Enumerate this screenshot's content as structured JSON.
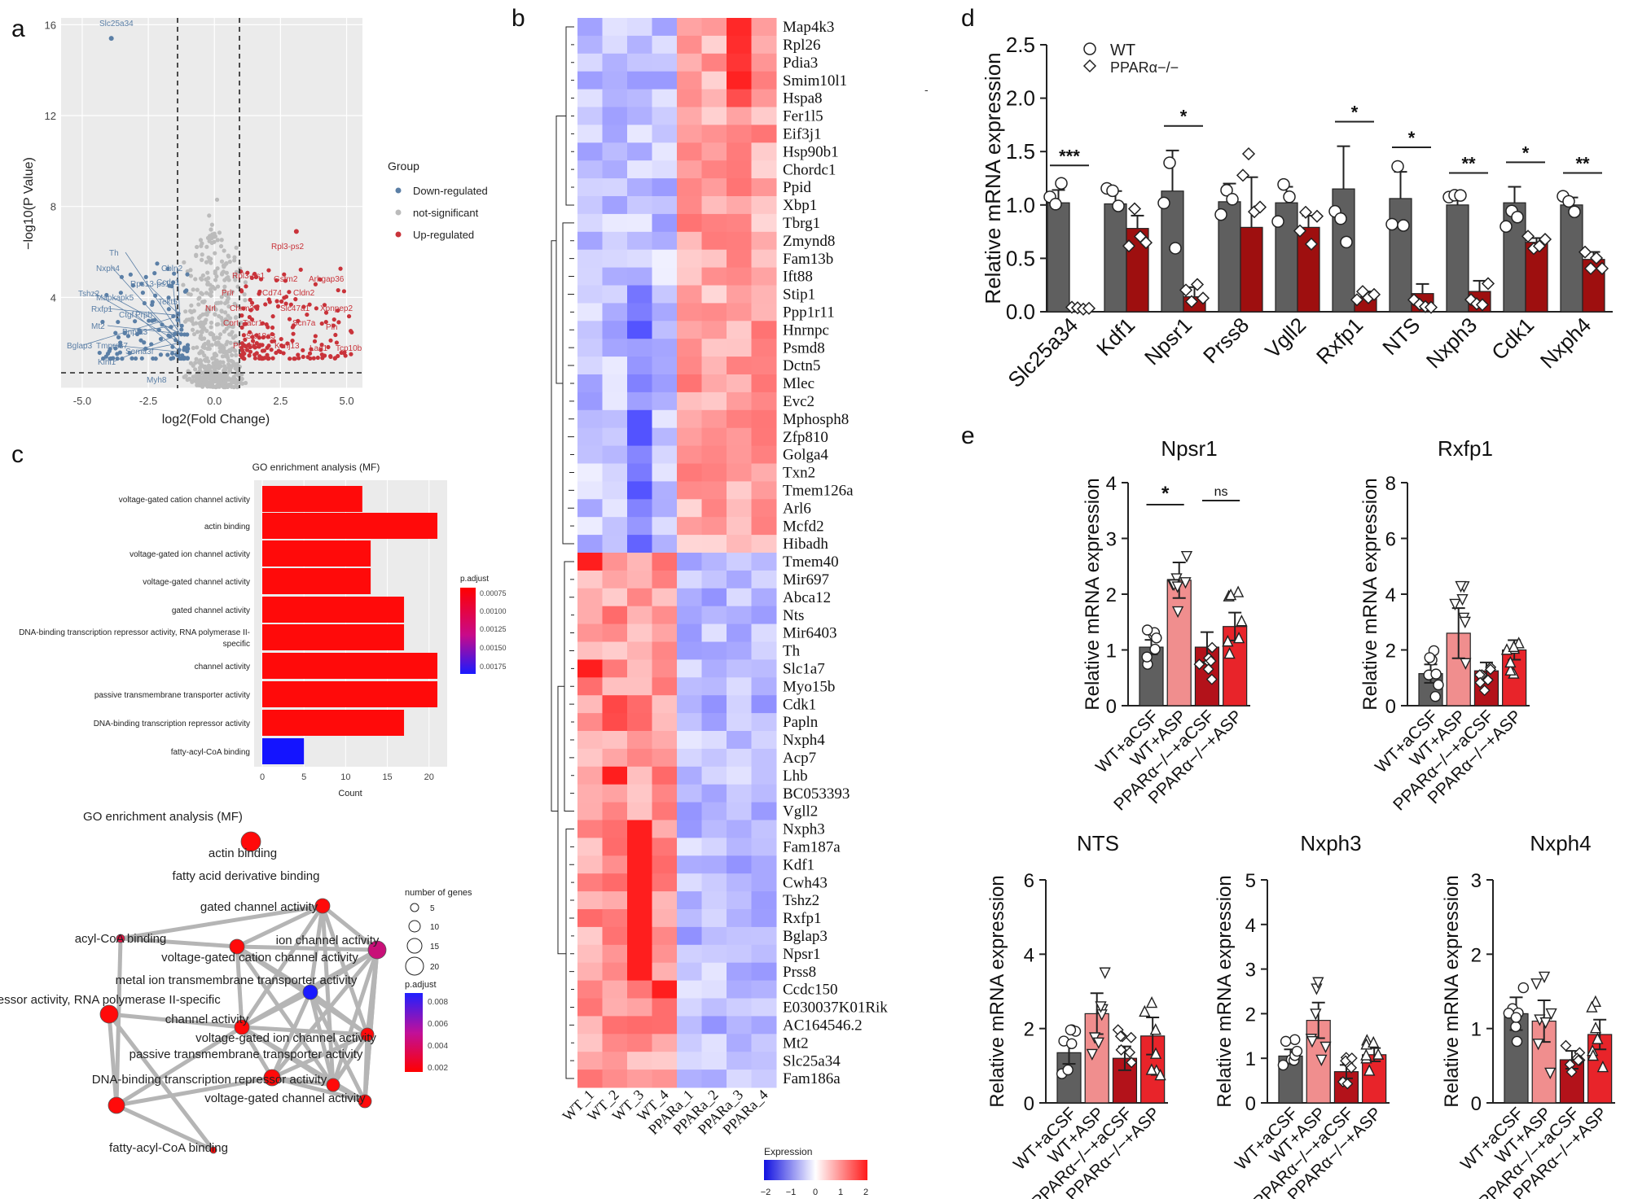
{
  "panels": {
    "a": "a",
    "b": "b",
    "c": "c",
    "d": "d",
    "e": "e"
  },
  "volcano": {
    "ylabel": "−log10(P Value)",
    "xlabel": "log2(Fold Change)",
    "xticks": [
      "-5.0",
      "-2.5",
      "0.0",
      "2.5",
      "5.0"
    ],
    "yticks": [
      "4",
      "8",
      "12",
      "16"
    ],
    "legend_title": "Group",
    "legend": [
      "Down-regulated",
      "not-significant",
      "Up-regulated"
    ],
    "colors": {
      "down": "#5b7fa6",
      "ns": "#bbbbbb",
      "up": "#c9333a"
    },
    "down_labels": [
      "Slc25a34",
      "Nxph4",
      "Th",
      "Cbln2",
      "Rps13-ps1",
      "Ccdc1",
      "Tshz2",
      "Mapkapk5",
      "Tekt5",
      "Rxfp1",
      "Ctgf",
      "Prph",
      "Mt2",
      "Pnpla3",
      "Bglap3",
      "Tmprss7",
      "Sema3f",
      "Klhl1",
      "Myh8"
    ],
    "up_labels": [
      "Rpl3-ps2",
      "Rpl3-ps1",
      "Gstm2",
      "Arhgap36",
      "Prlr",
      "Cd74",
      "Cldn2",
      "Nrl",
      "Chrm3",
      "Slc47a1",
      "Xpnpep2",
      "Cort",
      "Tacr1",
      "Scn7a",
      "Pln",
      "Slc18a3",
      "Ptrgfd1",
      "Kcnj13",
      "Lao1",
      "Tcp10b"
    ]
  },
  "heatmap": {
    "genes": [
      "Map4k3",
      "Rpl26",
      "Pdia3",
      "Smim10l1",
      "Hspa8",
      "Fer1l5",
      "Eif3j1",
      "Hsp90b1",
      "Chordc1",
      "Ppid",
      "Xbp1",
      "Tbrg1",
      "Zmynd8",
      "Fam13b",
      "Ift88",
      "Stip1",
      "Ppp1r11",
      "Hnrnpc",
      "Psmd8",
      "Dctn5",
      "Mlec",
      "Evc2",
      "Mphosph8",
      "Zfp810",
      "Golga4",
      "Txn2",
      "Tmem126a",
      "Arl6",
      "Mcfd2",
      "Hibadh",
      "Tmem40",
      "Mir697",
      "Abca12",
      "Nts",
      "Mir6403",
      "Th",
      "Slc1a7",
      "Myo15b",
      "Cdk1",
      "Papln",
      "Nxph4",
      "Acp7",
      "Lhb",
      "BC053393",
      "Vgll2",
      "Nxph3",
      "Fam187a",
      "Kdf1",
      "Cwh43",
      "Tshz2",
      "Rxfp1",
      "Bglap3",
      "Npsr1",
      "Prss8",
      "Ccdc150",
      "E030037K01Rik",
      "AC164546.2",
      "Mt2",
      "Slc25a34",
      "Fam186a"
    ],
    "samples": [
      "WT_1",
      "WT_2",
      "WT_3",
      "WT_4",
      "PPARa_1",
      "PPARa_2",
      "PPARa_3",
      "PPARa_4"
    ],
    "legend_title": "Expression",
    "legend_ticks": [
      "−2",
      "−1",
      "0",
      "1",
      "2"
    ]
  },
  "go_bar": {
    "title": "GO enrichment analysis (MF)",
    "terms": [
      "voltage-gated cation channel activity",
      "actin binding",
      "voltage-gated ion channel activity",
      "voltage-gated channel activity",
      "gated channel activity",
      "DNA-binding transcription repressor activity, RNA polymerase II-",
      "specific",
      "channel activity",
      "passive transmembrane transporter activity",
      "DNA-binding transcription repressor activity",
      "fatty-acyl-CoA binding"
    ],
    "counts": [
      12,
      21,
      13,
      13,
      17,
      17,
      21,
      21,
      17,
      5
    ],
    "xlabel": "Count",
    "xticks": [
      "0",
      "5",
      "10",
      "15",
      "20"
    ],
    "legend_title": "p.adjust",
    "legend_ticks": [
      "0.00075",
      "0.00100",
      "0.00125",
      "0.00150",
      "0.00175"
    ]
  },
  "go_net": {
    "title": "GO enrichment analysis (MF)",
    "labels": [
      "actin binding",
      "fatty acid derivative binding",
      "gated channel activity",
      "acyl-CoA binding",
      "ion channel activity",
      "voltage-gated cation channel activity",
      "metal ion transmembrane transporter activity",
      "on repressor activity, RNA polymerase II-specific",
      "channel activity",
      "voltage-gated ion channel activity",
      "passive transmembrane transporter activity",
      "DNA-binding transcription repressor activity",
      "voltage-gated channel activity",
      "fatty-acyl-CoA binding"
    ],
    "size_title": "number of genes",
    "size_ticks": [
      "5",
      "10",
      "15",
      "20"
    ],
    "padj_title": "p.adjust",
    "padj_ticks": [
      "0.008",
      "0.006",
      "0.004",
      "0.002"
    ]
  },
  "chart_data": [
    {
      "type": "bar",
      "panel": "d",
      "ylabel": "Relative mRNA expression",
      "ylim": [
        0,
        2.5
      ],
      "yticks": [
        "0.0",
        "0.5",
        "1.0",
        "1.5",
        "2.0",
        "2.5"
      ],
      "legend": [
        "WT",
        "PPARα−/−"
      ],
      "categories": [
        "Slc25a34",
        "Kdf1",
        "Npsr1",
        "Prss8",
        "Vgll2",
        "Rxfp1",
        "NTS",
        "Nxph3",
        "Cdk1",
        "Nxph4"
      ],
      "series": [
        {
          "name": "WT",
          "color": "#5f5f5f",
          "values": [
            1.02,
            1.01,
            1.13,
            1.03,
            1.02,
            1.15,
            1.06,
            1.0,
            1.02,
            1.0
          ],
          "err": [
            0.12,
            0.12,
            0.38,
            0.17,
            0.15,
            0.4,
            0.25,
            0.07,
            0.15,
            0.07
          ]
        },
        {
          "name": "PPARα−/−",
          "color": "#9e0f0f",
          "values": [
            0.03,
            0.78,
            0.14,
            0.79,
            0.79,
            0.14,
            0.17,
            0.19,
            0.65,
            0.49
          ],
          "err": [
            0.01,
            0.12,
            0.09,
            0.47,
            0.11,
            0.05,
            0.09,
            0.1,
            0.04,
            0.07
          ]
        }
      ],
      "significance": [
        "***",
        "",
        "*",
        "",
        "",
        "*",
        "*",
        "**",
        "*",
        "**"
      ]
    },
    {
      "type": "bar",
      "panel": "e",
      "title": "Npsr1",
      "ylabel": "Relative mRNA expression",
      "ylim": [
        0,
        4
      ],
      "yticks": [
        "0",
        "1",
        "2",
        "3",
        "4"
      ],
      "categories": [
        "WT+aCSF",
        "WT+ASP",
        "PPARα−/−+aCSF",
        "PPARα−/−+ASP"
      ],
      "values": [
        1.05,
        2.25,
        1.05,
        1.42
      ],
      "err": [
        0.13,
        0.32,
        0.27,
        0.25
      ],
      "colors": [
        "#5f5f5f",
        "#f08e8e",
        "#b3121a",
        "#e8242a"
      ],
      "significance": [
        {
          "label": "*",
          "from": 0,
          "to": 1
        },
        {
          "label": "ns",
          "from": 2,
          "to": 3
        }
      ]
    },
    {
      "type": "bar",
      "panel": "e",
      "title": "Rxfp1",
      "ylabel": "Relative mRNA expression",
      "ylim": [
        0,
        8
      ],
      "yticks": [
        "0",
        "2",
        "4",
        "6",
        "8"
      ],
      "categories": [
        "WT+aCSF",
        "WT+ASP",
        "PPARα−/−+aCSF",
        "PPARα−/−+ASP"
      ],
      "values": [
        1.15,
        2.6,
        1.25,
        2.0
      ],
      "err": [
        0.33,
        0.9,
        0.3,
        0.35
      ],
      "colors": [
        "#5f5f5f",
        "#f08e8e",
        "#b3121a",
        "#e8242a"
      ]
    },
    {
      "type": "bar",
      "panel": "e",
      "title": "NTS",
      "ylabel": "Relative mRNA expression",
      "ylim": [
        0,
        6
      ],
      "yticks": [
        "0",
        "2",
        "4",
        "6"
      ],
      "categories": [
        "WT+aCSF",
        "WT+ASP",
        "PPARα−/−+aCSF",
        "PPARα−/−+ASP"
      ],
      "values": [
        1.35,
        2.4,
        1.2,
        1.8
      ],
      "err": [
        0.3,
        0.55,
        0.32,
        0.5
      ],
      "colors": [
        "#5f5f5f",
        "#f08e8e",
        "#b3121a",
        "#e8242a"
      ]
    },
    {
      "type": "bar",
      "panel": "e",
      "title": "Nxph3",
      "ylabel": "Relative mRNA expression",
      "ylim": [
        0,
        5
      ],
      "yticks": [
        "0",
        "1",
        "2",
        "3",
        "4",
        "5"
      ],
      "categories": [
        "WT+aCSF",
        "WT+ASP",
        "PPARα−/−+aCSF",
        "PPARα−/−+ASP"
      ],
      "values": [
        1.05,
        1.85,
        0.7,
        1.08
      ],
      "err": [
        0.15,
        0.4,
        0.15,
        0.15
      ],
      "colors": [
        "#5f5f5f",
        "#f08e8e",
        "#b3121a",
        "#e8242a"
      ]
    },
    {
      "type": "bar",
      "panel": "e",
      "title": "Nxph4",
      "ylabel": "Relative mRNA expression",
      "ylim": [
        0,
        3
      ],
      "yticks": [
        "0",
        "1",
        "2",
        "3"
      ],
      "categories": [
        "WT+aCSF",
        "WT+ASP",
        "PPARα−/−+aCSF",
        "PPARα−/−+ASP"
      ],
      "values": [
        1.2,
        1.1,
        0.58,
        0.92
      ],
      "err": [
        0.22,
        0.28,
        0.12,
        0.2
      ],
      "colors": [
        "#5f5f5f",
        "#f08e8e",
        "#b3121a",
        "#e8242a"
      ]
    }
  ]
}
